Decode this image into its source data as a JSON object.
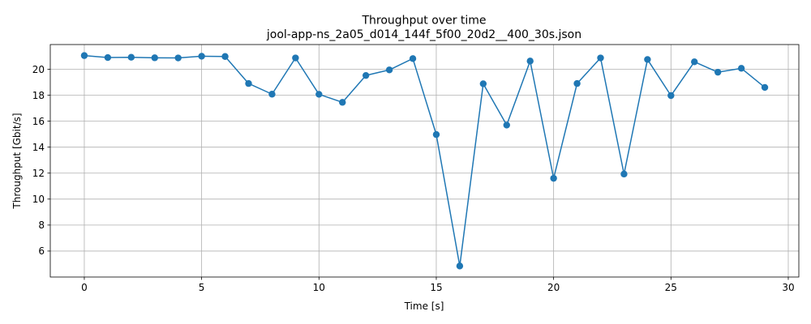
{
  "chart_data": {
    "type": "line",
    "title": "Throughput over time",
    "subtitle": "jool-app-ns_2a05_d014_144f_5f00_20d2__400_30s.json",
    "xlabel": "Time [s]",
    "ylabel": "Throughput [Gbit/s]",
    "xlim": [
      -1.45,
      30.45
    ],
    "ylim": [
      4.0,
      21.9
    ],
    "xticks": [
      0,
      5,
      10,
      15,
      20,
      25,
      30
    ],
    "yticks": [
      6,
      8,
      10,
      12,
      14,
      16,
      18,
      20
    ],
    "grid": true,
    "series": [
      {
        "color": "#1f77b4",
        "marker": "circle",
        "x": [
          0,
          1,
          2,
          3,
          4,
          5,
          6,
          7,
          8,
          9,
          10,
          11,
          12,
          13,
          14,
          15,
          16,
          17,
          18,
          19,
          20,
          21,
          22,
          23,
          24,
          25,
          26,
          27,
          28,
          29
        ],
        "y": [
          21.05,
          20.9,
          20.92,
          20.88,
          20.87,
          21.0,
          20.98,
          18.9,
          18.08,
          20.87,
          18.07,
          17.45,
          19.52,
          19.95,
          20.82,
          14.97,
          4.85,
          18.88,
          15.7,
          20.63,
          11.6,
          18.9,
          20.87,
          11.93,
          20.75,
          17.97,
          20.57,
          19.77,
          20.07,
          18.6
        ]
      }
    ]
  }
}
